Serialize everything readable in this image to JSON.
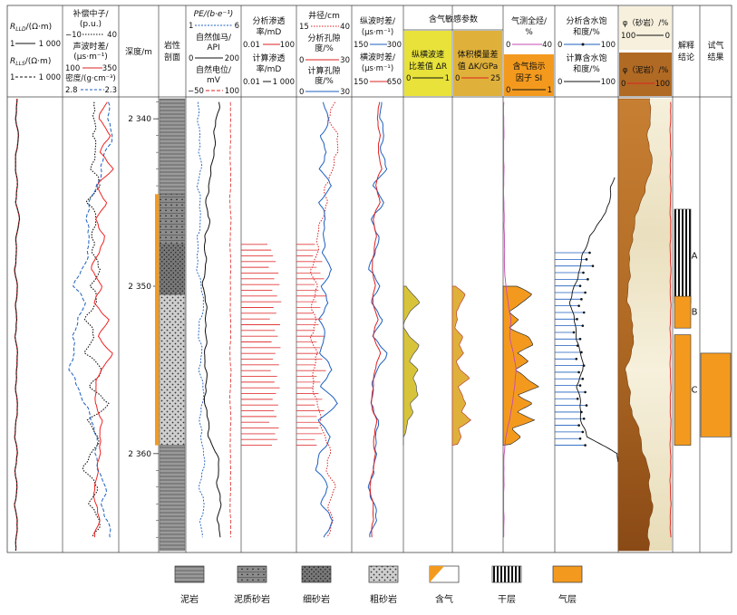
{
  "header": {
    "track1": {
      "line1": "R",
      "sub1": "LLD",
      "unit1": "/(Ω·m)",
      "range1": [
        "1",
        "1 000"
      ],
      "line2": "R",
      "sub2": "LLS",
      "unit2": "/(Ω·m)",
      "range2": [
        "1",
        "1 000"
      ]
    },
    "track2": {
      "cnl": [
        "补偿中子/",
        "(p.u.)"
      ],
      "cnl_range": [
        "−10",
        "40"
      ],
      "ac": [
        "声波时差/",
        "(μs·m⁻¹)"
      ],
      "ac_range": [
        "100",
        "350"
      ],
      "den": "密度/(g·cm⁻³)",
      "den_range": [
        "2.8",
        "2.3"
      ]
    },
    "depth": "深度/m",
    "lith": [
      "岩性",
      "剖面"
    ],
    "track5": {
      "pe": "PE/(b·e⁻¹)",
      "pe_range": [
        "1",
        "6"
      ],
      "gr": [
        "自然伽马/",
        "API"
      ],
      "gr_range": [
        "0",
        "200"
      ],
      "sp": [
        "自然电位/",
        "mV"
      ],
      "sp_range": [
        "−50",
        "100"
      ]
    },
    "track6": {
      "k1": [
        "分析渗透",
        "率/mD"
      ],
      "k1_range": [
        "0.01",
        "100"
      ],
      "k2": [
        "计算渗透",
        "率/mD"
      ],
      "k2_range": [
        "0.01",
        "1 000"
      ]
    },
    "track7": {
      "cal": "井径/cm",
      "cal_range": [
        "15",
        "40"
      ],
      "por1": [
        "分析孔隙",
        "度/%"
      ],
      "por1_range": [
        "0",
        "30"
      ],
      "por2": [
        "计算孔隙",
        "度/%"
      ],
      "por2_range": [
        "0",
        "30"
      ]
    },
    "track8": {
      "dtc": [
        "纵波时差/",
        "(μs·m⁻¹)"
      ],
      "dtc_range": [
        "150",
        "300"
      ],
      "dts": [
        "横波时差/",
        "(μs·m⁻¹)"
      ],
      "dts_range": [
        "150",
        "650"
      ]
    },
    "gas": {
      "title": "含气敏感参数",
      "dr": [
        "纵横波速",
        "比差值 ΔR"
      ],
      "dr_range": [
        "0",
        "1"
      ],
      "dk": [
        "体积模量差",
        "值 ΔK/GPa"
      ],
      "dk_range": [
        "0",
        "25"
      ]
    },
    "track10": {
      "tg": [
        "气测全烃/",
        "%"
      ],
      "tg_range": [
        "0",
        "40"
      ],
      "si": [
        "含气指示",
        "因子 SI"
      ],
      "si_range": [
        "0",
        "1"
      ]
    },
    "track11": {
      "sw1": [
        "分析含水饱",
        "和度/%"
      ],
      "sw1_range": [
        "0",
        "100"
      ],
      "sw2": [
        "计算含水饱",
        "和度/%"
      ],
      "sw2_range": [
        "0",
        "100"
      ]
    },
    "track12": {
      "phi_sand": "φ（砂岩）/%",
      "sand_range": [
        "100",
        "0"
      ],
      "phi_mud": "φ（泥岩）/%",
      "mud_range": [
        "0",
        "100"
      ]
    },
    "interp": [
      "解释",
      "结论"
    ],
    "test": [
      "试气",
      "结果"
    ]
  },
  "depth_ticks": [
    {
      "value": 2340,
      "label": "2 340"
    },
    {
      "value": 2350,
      "label": "2 350"
    },
    {
      "value": 2360,
      "label": "2 360"
    }
  ],
  "interpretation_zones": [
    {
      "label": "A",
      "top": 2345.4,
      "base": 2351.0,
      "type": "dry"
    },
    {
      "label": "B",
      "top": 2350.6,
      "base": 2352.5,
      "type": "gas"
    },
    {
      "label": "C",
      "top": 2352.9,
      "base": 2359.5,
      "type": "gas"
    }
  ],
  "gas_test": {
    "top": 2354.0,
    "base": 2359.0
  },
  "legend": [
    {
      "key": "mudstone",
      "label": "泥岩"
    },
    {
      "key": "muddy-sandstone",
      "label": "泥质砂岩"
    },
    {
      "key": "fine-sandstone",
      "label": "细砂岩"
    },
    {
      "key": "coarse-sandstone",
      "label": "粗砂岩"
    },
    {
      "key": "gas-bearing",
      "label": "含气"
    },
    {
      "key": "dry-layer",
      "label": "干层"
    },
    {
      "key": "gas-layer",
      "label": "气层"
    }
  ],
  "chart_data": {
    "type": "well-log",
    "depth_range": [
      2338.8,
      2365.8
    ],
    "lithology": [
      {
        "top": 2338.8,
        "base": 2344.5,
        "type": "mudstone"
      },
      {
        "top": 2344.5,
        "base": 2347.5,
        "type": "muddy-sandstone"
      },
      {
        "top": 2347.5,
        "base": 2350.5,
        "type": "fine-sandstone"
      },
      {
        "top": 2350.5,
        "base": 2359.5,
        "type": "coarse-sandstone"
      },
      {
        "top": 2359.5,
        "base": 2365.8,
        "type": "mudstone"
      }
    ],
    "depth": [
      2339,
      2340,
      2341,
      2342,
      2343,
      2344,
      2345,
      2346,
      2347,
      2348,
      2349,
      2350,
      2351,
      2352,
      2353,
      2354,
      2355,
      2356,
      2357,
      2358,
      2359,
      2360,
      2361,
      2362,
      2363,
      2364,
      2365
    ],
    "curves": {
      "RLLD": [
        3.2,
        3.0,
        4.0,
        3.1,
        2.8,
        3.5,
        3.0,
        4.5,
        3.2,
        3.0,
        2.6,
        3.6,
        2.8,
        3.4,
        2.5,
        3.8,
        3.1,
        2.9,
        3.6,
        3.0,
        2.7,
        3.4,
        2.8,
        3.3,
        2.6,
        3.5,
        3.0
      ],
      "RLLS": [
        3.1,
        2.9,
        3.9,
        3.0,
        2.8,
        3.4,
        3.0,
        4.4,
        3.1,
        3.0,
        2.5,
        3.5,
        2.7,
        3.3,
        2.5,
        3.7,
        3.0,
        2.9,
        3.5,
        3.0,
        2.7,
        3.3,
        2.8,
        3.2,
        2.6,
        3.4,
        3.0
      ],
      "CNL": [
        18,
        20,
        16,
        22,
        14,
        25,
        12,
        20,
        18,
        15,
        26,
        14,
        22,
        10,
        18,
        12,
        24,
        16,
        30,
        14,
        22,
        15,
        10,
        20,
        16,
        22,
        18
      ],
      "AC": [
        300,
        260,
        310,
        270,
        320,
        255,
        290,
        250,
        285,
        260,
        230,
        270,
        245,
        300,
        260,
        320,
        270,
        250,
        240,
        280,
        260,
        270,
        255,
        240,
        250,
        260,
        245
      ],
      "DEN": [
        2.4,
        2.38,
        2.36,
        2.42,
        2.45,
        2.5,
        2.55,
        2.6,
        2.55,
        2.58,
        2.62,
        2.7,
        2.6,
        2.65,
        2.72,
        2.68,
        2.75,
        2.66,
        2.6,
        2.55,
        2.48,
        2.52,
        2.47,
        2.42,
        2.45,
        2.4,
        2.38
      ],
      "PE": [
        2.2,
        2.0,
        2.4,
        2.1,
        2.5,
        2.0,
        2.3,
        2.4,
        2.0,
        2.2,
        1.9,
        2.5,
        2.6,
        2.3,
        2.2,
        2.4,
        2.3,
        2.5,
        2.6,
        2.2,
        2.4,
        2.7,
        2.5,
        2.3,
        2.6,
        2.4,
        2.5
      ],
      "GR": [
        120,
        110,
        105,
        100,
        95,
        80,
        75,
        85,
        70,
        72,
        68,
        65,
        70,
        75,
        72,
        68,
        75,
        70,
        72,
        78,
        85,
        110,
        120,
        115,
        125,
        118,
        122
      ],
      "SP": [
        70,
        72,
        71,
        70,
        72,
        71,
        70,
        72,
        71,
        70,
        72,
        71,
        70,
        72,
        71,
        70,
        72,
        71,
        70,
        72,
        71,
        70,
        72,
        71,
        70,
        72,
        71
      ],
      "CAL": [
        32,
        30,
        33,
        34,
        31,
        28,
        29,
        26,
        25,
        24,
        22,
        24,
        22,
        24,
        21,
        25,
        22,
        23,
        24,
        26,
        28,
        30,
        29,
        32,
        30,
        31,
        29
      ],
      "POR_calc": [
        15,
        18,
        13,
        17,
        12,
        20,
        12,
        16,
        15,
        14,
        20,
        13,
        18,
        12,
        16,
        13,
        19,
        14,
        22,
        13,
        18,
        13,
        11,
        17,
        14,
        19,
        16
      ],
      "DTC": [
        240,
        230,
        245,
        235,
        250,
        215,
        240,
        210,
        225,
        220,
        200,
        230,
        210,
        235,
        215,
        250,
        225,
        210,
        205,
        230,
        215,
        225,
        210,
        200,
        215,
        220,
        205
      ],
      "DTS": [
        420,
        390,
        430,
        400,
        440,
        380,
        420,
        360,
        380,
        370,
        340,
        380,
        350,
        400,
        360,
        420,
        380,
        350,
        340,
        390,
        360,
        380,
        350,
        330,
        350,
        360,
        340
      ],
      "TG": [
        0.5,
        0.5,
        0.5,
        0.5,
        0.5,
        0.5,
        0.5,
        0.8,
        1.0,
        1.0,
        1.2,
        2.0,
        4.0,
        6.0,
        5.0,
        8.0,
        10.0,
        9.0,
        7.0,
        5.0,
        2.0,
        0.8,
        0.6,
        0.5,
        0.5,
        0.5,
        0.5
      ],
      "SW_calc": [
        100,
        100,
        100,
        100,
        100,
        90,
        85,
        75,
        55,
        45,
        40,
        30,
        25,
        30,
        35,
        40,
        45,
        35,
        40,
        42,
        50,
        100,
        100,
        100,
        100,
        100,
        100
      ]
    },
    "analysis_permeability": {
      "depth_range": [
        2347.5,
        2359.5
      ],
      "values_mD": [
        0.8,
        1.5,
        2.0,
        3.2,
        1.0,
        5.0,
        2.5,
        6.0,
        1.8,
        4.0,
        8.0,
        2.2,
        3.5,
        1.2,
        6.5,
        2.8,
        4.5,
        1.6,
        7.0,
        3.0,
        2.0,
        5.5,
        1.4,
        4.0,
        2.6,
        6.2,
        3.3,
        1.9,
        4.8,
        2.4,
        3.6,
        1.1,
        5.2,
        2.9,
        4.1,
        1.7
      ]
    },
    "analysis_porosity": {
      "depth_range": [
        2347.5,
        2359.5
      ],
      "values_pct": [
        10,
        12,
        9,
        14,
        11,
        13,
        15,
        10,
        12,
        16,
        11,
        13,
        9,
        14,
        12,
        10,
        15,
        11,
        13,
        12,
        14,
        10,
        16,
        11,
        13,
        9,
        12,
        14,
        10,
        15,
        11,
        13,
        12,
        14,
        10,
        11
      ]
    },
    "analysis_sw": {
      "depth_range": [
        2348.0,
        2359.5
      ],
      "values_pct": [
        55,
        50,
        60,
        45,
        52,
        40,
        48,
        42,
        38,
        46,
        35,
        44,
        30,
        40,
        36,
        42,
        34,
        46,
        38,
        44,
        40,
        48,
        36,
        50,
        42,
        46,
        38,
        44,
        40,
        48
      ]
    },
    "delta_R": {
      "depth_range": [
        2350.0,
        2359.5
      ],
      "values": [
        0.08,
        0.2,
        0.32,
        0.12,
        0.05,
        0.02,
        0.12,
        0.3,
        0.22,
        0.14,
        0.32,
        0.18,
        0.25,
        0.3,
        0.16,
        0.2,
        0.08,
        0.05,
        0.02,
        0.01
      ]
    },
    "delta_K": {
      "depth_range": [
        2350.0,
        2359.5
      ],
      "values_GPa": [
        2,
        6,
        4,
        2,
        3,
        1,
        5,
        3,
        6,
        2,
        4,
        8,
        3,
        5,
        7,
        4,
        9,
        3,
        5,
        2
      ]
    },
    "gas_indicator_SI": {
      "depth_range": [
        2350.0,
        2359.5
      ],
      "values": [
        0.25,
        0.55,
        0.35,
        0.15,
        0.3,
        0.1,
        0.45,
        0.6,
        0.3,
        0.5,
        0.2,
        0.45,
        0.7,
        0.3,
        0.55,
        0.25,
        0.6,
        0.2,
        0.35,
        0.1
      ]
    },
    "porosity_spectrum": {
      "depth": [
        2339,
        2341,
        2343,
        2345,
        2347,
        2349,
        2351,
        2353,
        2355,
        2357,
        2359,
        2361,
        2363,
        2365
      ],
      "mudstone_pct": [
        60,
        55,
        62,
        40,
        25,
        20,
        18,
        30,
        15,
        22,
        40,
        55,
        62,
        55
      ]
    }
  }
}
